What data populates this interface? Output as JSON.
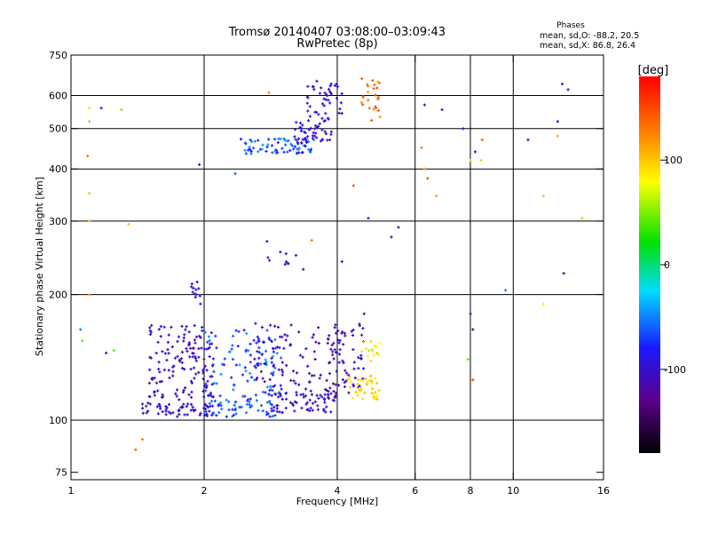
{
  "chart_data": {
    "type": "scatter",
    "title": "Tromsø 20140407 03:08:00–03:09:43",
    "subtitle": "RwPretec (8p)",
    "xlabel": "Frequency [MHz]",
    "ylabel": "Stationary phase Virtual Height [km]",
    "x_scale": "log",
    "y_scale": "log",
    "xlim": [
      1,
      16
    ],
    "ylim": [
      72,
      750
    ],
    "x_ticks": [
      1,
      2,
      4,
      6,
      8,
      10,
      16
    ],
    "y_ticks": [
      75,
      100,
      200,
      300,
      400,
      500,
      600,
      750
    ],
    "x_gridlines": [
      2,
      4,
      6,
      8,
      10
    ],
    "y_gridlines": [
      100,
      200,
      300,
      400,
      500,
      600
    ],
    "grid": true,
    "phases_box": {
      "title": "Phases",
      "line1": "mean, sd,O: -88.2, 20.5",
      "line2": "mean, sd,X:  86.8, 26.4"
    },
    "colorbar": {
      "label": "[deg]",
      "range": [
        -180,
        180
      ],
      "ticks": [
        100,
        0,
        -100
      ],
      "colormap": "rainbow"
    },
    "clusters": [
      {
        "x_range": [
          1.45,
          2.1
        ],
        "y_range": [
          102,
          110
        ],
        "phase_range": [
          -112,
          -90
        ],
        "count": 55
      },
      {
        "x_range": [
          2.0,
          2.9
        ],
        "y_range": [
          102,
          112
        ],
        "phase_range": [
          -85,
          -50
        ],
        "count": 55
      },
      {
        "x_range": [
          2.8,
          4.0
        ],
        "y_range": [
          104,
          118
        ],
        "phase_range": [
          -115,
          -85
        ],
        "count": 70
      },
      {
        "x_range": [
          1.5,
          2.1
        ],
        "y_range": [
          112,
          170
        ],
        "phase_range": [
          -115,
          -95
        ],
        "count": 140
      },
      {
        "x_range": [
          2.0,
          3.0
        ],
        "y_range": [
          112,
          165
        ],
        "phase_range": [
          -95,
          -40
        ],
        "count": 100
      },
      {
        "x_range": [
          2.6,
          4.2
        ],
        "y_range": [
          115,
          172
        ],
        "phase_range": [
          -130,
          -95
        ],
        "count": 110
      },
      {
        "x_range": [
          3.9,
          4.6
        ],
        "y_range": [
          113,
          175
        ],
        "phase_range": [
          -120,
          -95
        ],
        "count": 40
      },
      {
        "x_range": [
          4.2,
          5.0
        ],
        "y_range": [
          112,
          128
        ],
        "phase_range": [
          80,
          110
        ],
        "count": 40
      },
      {
        "x_range": [
          4.5,
          5.0
        ],
        "y_range": [
          135,
          155
        ],
        "phase_range": [
          60,
          100
        ],
        "count": 15
      },
      {
        "x_range": [
          2.4,
          3.6
        ],
        "y_range": [
          435,
          475
        ],
        "phase_range": [
          -90,
          -40
        ],
        "count": 70
      },
      {
        "x_range": [
          3.2,
          3.9
        ],
        "y_range": [
          460,
          530
        ],
        "phase_range": [
          -120,
          -80
        ],
        "count": 45
      },
      {
        "x_range": [
          3.4,
          4.1
        ],
        "y_range": [
          520,
          650
        ],
        "phase_range": [
          -120,
          -80
        ],
        "count": 45
      },
      {
        "x_range": [
          4.5,
          5.0
        ],
        "y_range": [
          520,
          660
        ],
        "phase_range": [
          110,
          150
        ],
        "count": 25
      },
      {
        "x_range": [
          1.85,
          1.97
        ],
        "y_range": [
          190,
          220
        ],
        "phase_range": [
          -110,
          -90
        ],
        "count": 12
      },
      {
        "x_range": [
          2.75,
          3.4
        ],
        "y_range": [
          215,
          275
        ],
        "phase_range": [
          -120,
          -90
        ],
        "count": 10
      }
    ],
    "scattered_points": [
      {
        "x": 1.05,
        "y": 165,
        "phase": -50
      },
      {
        "x": 1.06,
        "y": 155,
        "phase": 40
      },
      {
        "x": 1.1,
        "y": 560,
        "phase": 90
      },
      {
        "x": 1.1,
        "y": 520,
        "phase": 110
      },
      {
        "x": 1.09,
        "y": 430,
        "phase": 130
      },
      {
        "x": 1.1,
        "y": 350,
        "phase": 100
      },
      {
        "x": 1.1,
        "y": 300,
        "phase": 110
      },
      {
        "x": 1.1,
        "y": 200,
        "phase": 120
      },
      {
        "x": 1.17,
        "y": 560,
        "phase": -90
      },
      {
        "x": 1.3,
        "y": 555,
        "phase": 50
      },
      {
        "x": 1.2,
        "y": 145,
        "phase": -90
      },
      {
        "x": 1.25,
        "y": 147,
        "phase": 40
      },
      {
        "x": 1.35,
        "y": 295,
        "phase": 100
      },
      {
        "x": 1.4,
        "y": 85,
        "phase": 140
      },
      {
        "x": 1.45,
        "y": 90,
        "phase": 130
      },
      {
        "x": 1.95,
        "y": 410,
        "phase": -110
      },
      {
        "x": 2.35,
        "y": 390,
        "phase": -60
      },
      {
        "x": 2.8,
        "y": 610,
        "phase": 120
      },
      {
        "x": 3.35,
        "y": 230,
        "phase": -100
      },
      {
        "x": 3.5,
        "y": 270,
        "phase": 130
      },
      {
        "x": 4.1,
        "y": 240,
        "phase": -90
      },
      {
        "x": 4.35,
        "y": 365,
        "phase": 150
      },
      {
        "x": 4.6,
        "y": 180,
        "phase": -120
      },
      {
        "x": 4.7,
        "y": 305,
        "phase": -80
      },
      {
        "x": 5.3,
        "y": 275,
        "phase": -110
      },
      {
        "x": 5.5,
        "y": 290,
        "phase": -130
      },
      {
        "x": 6.2,
        "y": 450,
        "phase": 130
      },
      {
        "x": 6.3,
        "y": 400,
        "phase": 120
      },
      {
        "x": 6.4,
        "y": 380,
        "phase": 150
      },
      {
        "x": 6.3,
        "y": 570,
        "phase": -120
      },
      {
        "x": 6.7,
        "y": 345,
        "phase": 120
      },
      {
        "x": 6.9,
        "y": 555,
        "phase": -90
      },
      {
        "x": 7.7,
        "y": 500,
        "phase": -80
      },
      {
        "x": 7.9,
        "y": 140,
        "phase": 40
      },
      {
        "x": 8.0,
        "y": 180,
        "phase": -120
      },
      {
        "x": 8.1,
        "y": 165,
        "phase": -130
      },
      {
        "x": 8.1,
        "y": 125,
        "phase": 150
      },
      {
        "x": 8.0,
        "y": 420,
        "phase": 100
      },
      {
        "x": 8.2,
        "y": 440,
        "phase": -110
      },
      {
        "x": 8.5,
        "y": 470,
        "phase": 140
      },
      {
        "x": 8.45,
        "y": 420,
        "phase": 60
      },
      {
        "x": 9.6,
        "y": 205,
        "phase": -50
      },
      {
        "x": 10.8,
        "y": 470,
        "phase": -100
      },
      {
        "x": 11.7,
        "y": 345,
        "phase": 100
      },
      {
        "x": 11.7,
        "y": 190,
        "phase": 90
      },
      {
        "x": 12.6,
        "y": 480,
        "phase": 110
      },
      {
        "x": 12.6,
        "y": 520,
        "phase": -80
      },
      {
        "x": 12.9,
        "y": 640,
        "phase": -100
      },
      {
        "x": 13.3,
        "y": 620,
        "phase": -120
      },
      {
        "x": 13.0,
        "y": 225,
        "phase": -130
      },
      {
        "x": 14.3,
        "y": 305,
        "phase": 100
      }
    ]
  }
}
